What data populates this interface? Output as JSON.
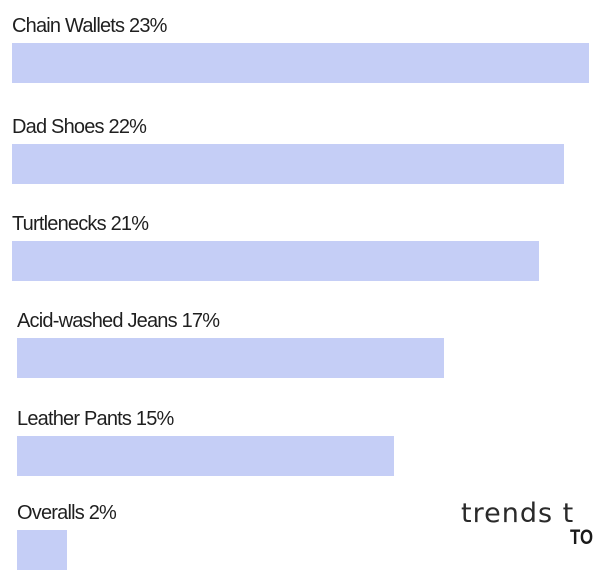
{
  "chart_data": {
    "type": "bar",
    "orientation": "horizontal",
    "categories": [
      "Chain Wallets",
      "Dad Shoes",
      "Turtlenecks",
      "Acid-washed Jeans",
      "Leather Pants",
      "Overalls"
    ],
    "values": [
      23,
      22,
      21,
      17,
      15,
      2
    ],
    "labels": [
      "Chain Wallets 23%",
      "Dad Shoes 22%",
      "Turtlenecks 21%",
      "Acid-washed Jeans 17%",
      "Leather Pants 15%",
      "Overalls 2%"
    ],
    "title": "",
    "xlabel": "",
    "ylabel": "",
    "grid": false,
    "bar_color": "#c5cef6"
  },
  "corner": {
    "text1": "trends t",
    "text2": "TO"
  }
}
